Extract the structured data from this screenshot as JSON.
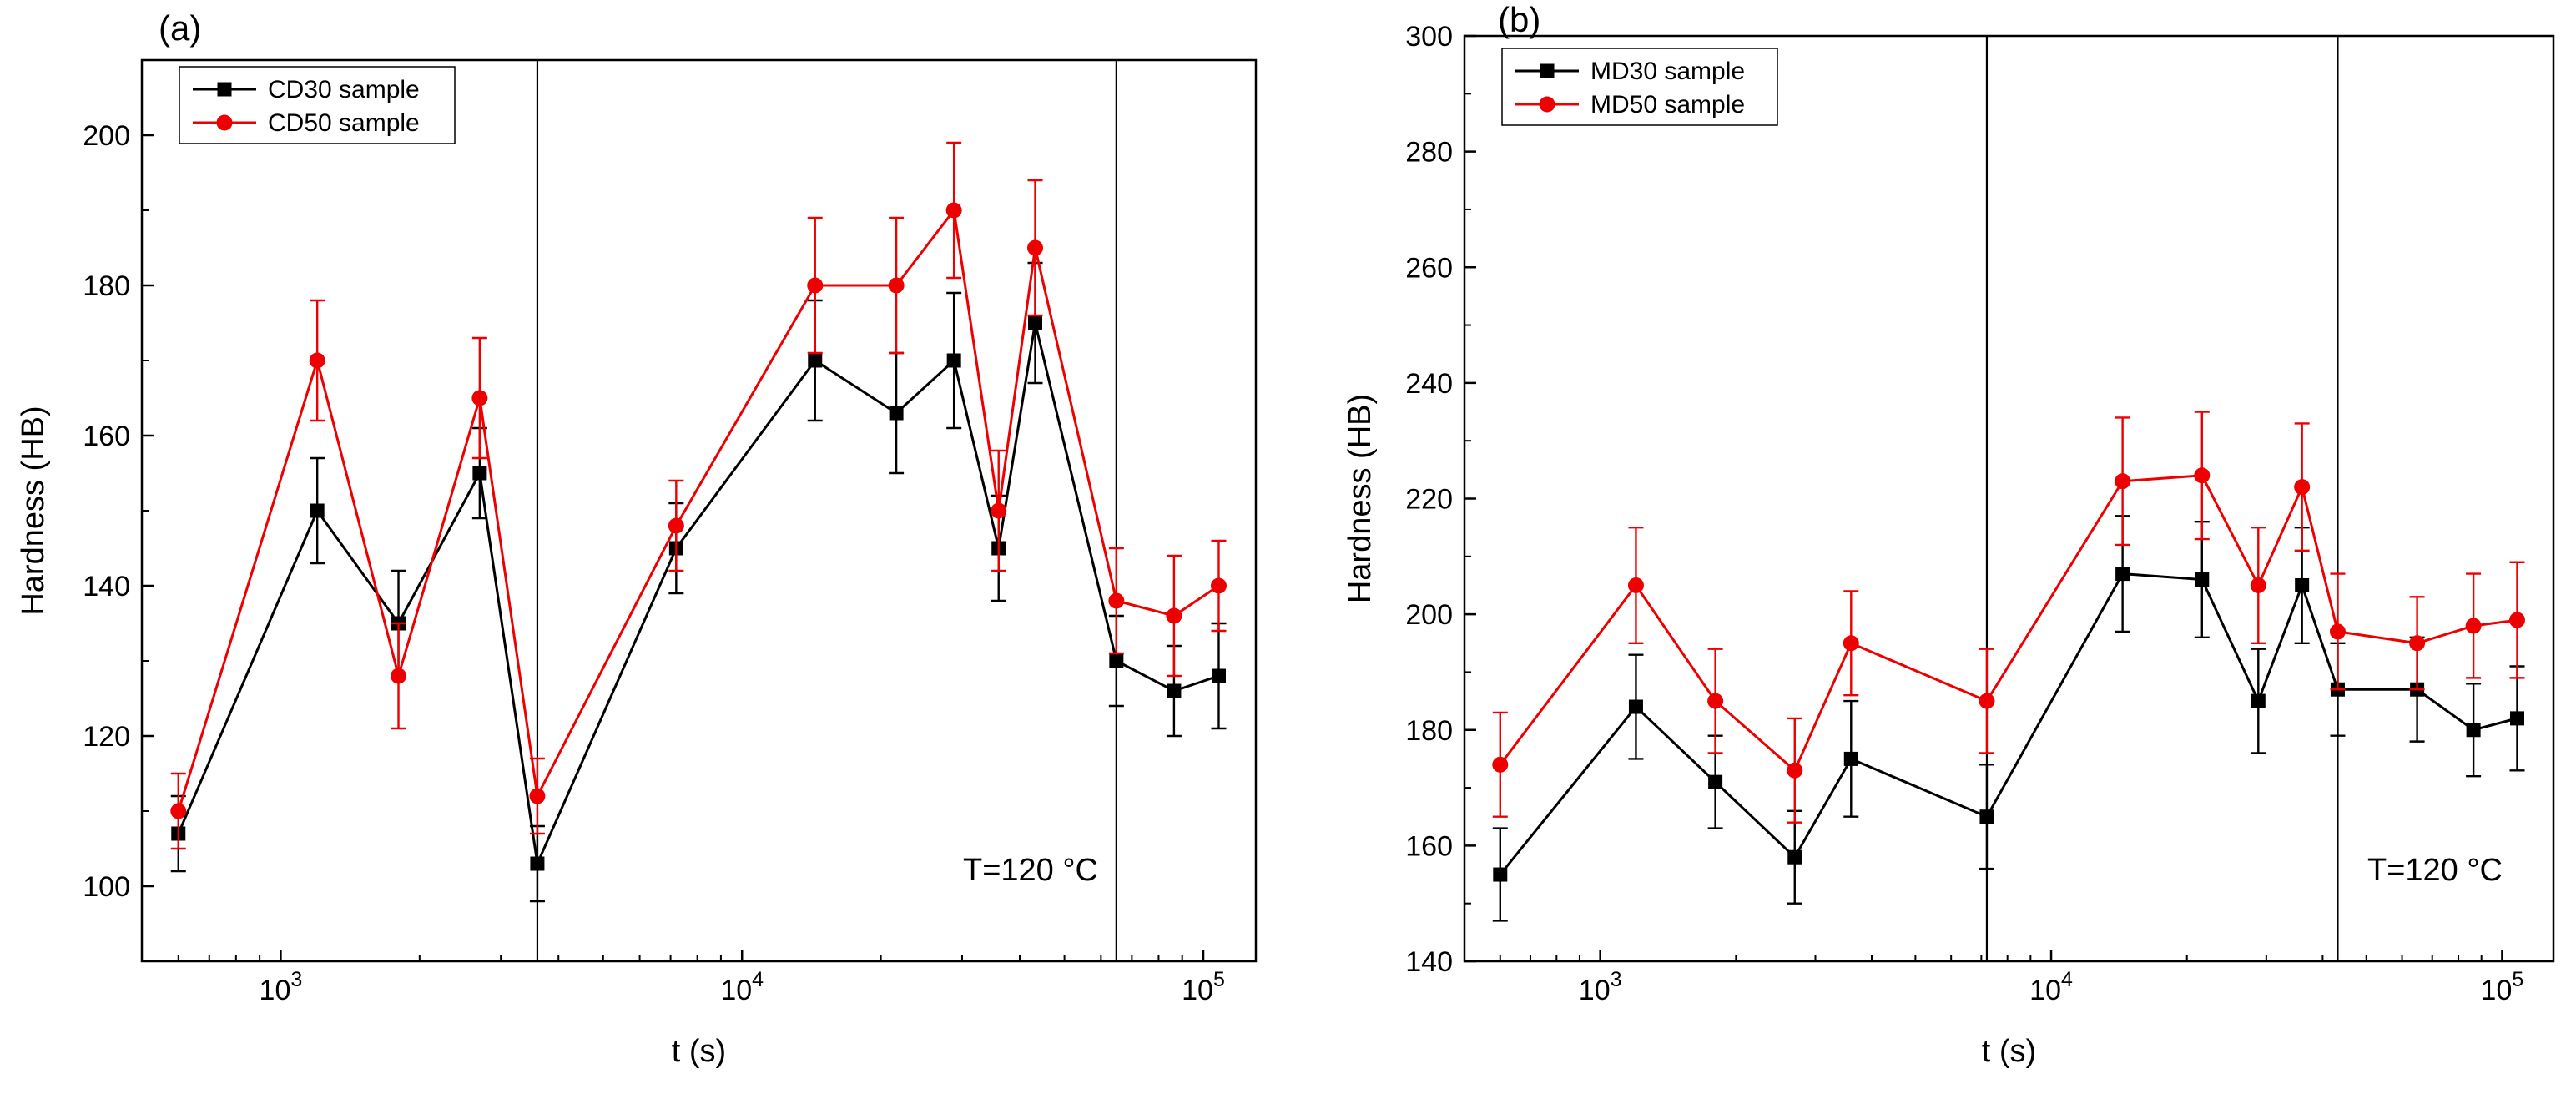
{
  "figure": {
    "background": "#ffffff",
    "axis_color": "#000000"
  },
  "chart_data": [
    {
      "type": "line",
      "panel_label": "(a)",
      "xlabel": "t (s)",
      "ylabel": "Hardness (HB)",
      "annotation": "T=120 °C",
      "x_scale": "log",
      "xlim": [
        500,
        130000
      ],
      "ylim": [
        90,
        210
      ],
      "ytick_major": [
        100,
        120,
        140,
        160,
        180,
        200
      ],
      "ytick_minor_step": 10,
      "xtick_decades": [
        3,
        4,
        5
      ],
      "vlines": [
        3600,
        64800
      ],
      "legend_position": "top-left",
      "x": [
        600,
        1200,
        1800,
        2700,
        3600,
        7200,
        14400,
        21600,
        28800,
        36000,
        43200,
        64800,
        86400,
        108000
      ],
      "series": [
        {
          "name": "CD30 sample",
          "color": "#000000",
          "marker": "square",
          "values": [
            107,
            150,
            135,
            155,
            103,
            145,
            170,
            163,
            170,
            145,
            175,
            130,
            126,
            128
          ],
          "errors": [
            5,
            7,
            7,
            6,
            5,
            6,
            8,
            8,
            9,
            7,
            8,
            6,
            6,
            7
          ]
        },
        {
          "name": "CD50 sample",
          "color": "#ee0000",
          "marker": "circle",
          "values": [
            110,
            170,
            128,
            165,
            112,
            148,
            180,
            180,
            190,
            150,
            185,
            138,
            136,
            140
          ],
          "errors": [
            5,
            8,
            7,
            8,
            5,
            6,
            9,
            9,
            9,
            8,
            9,
            7,
            8,
            6
          ]
        }
      ]
    },
    {
      "type": "line",
      "panel_label": "(b)",
      "xlabel": "t (s)",
      "ylabel": "Hardness (HB)",
      "annotation": "T=120 °C",
      "x_scale": "log",
      "xlim": [
        500,
        130000
      ],
      "ylim": [
        140,
        300
      ],
      "ytick_major": [
        140,
        160,
        180,
        200,
        220,
        240,
        260,
        280,
        300
      ],
      "ytick_minor_step": 10,
      "xtick_decades": [
        3,
        4,
        5
      ],
      "vlines": [
        7200,
        43200
      ],
      "legend_position": "top-left",
      "x": [
        600,
        1200,
        1800,
        2700,
        3600,
        7200,
        14400,
        21600,
        28800,
        36000,
        43200,
        64800,
        86400,
        108000
      ],
      "series": [
        {
          "name": "MD30 sample",
          "color": "#000000",
          "marker": "square",
          "values": [
            155,
            184,
            171,
            158,
            175,
            165,
            207,
            206,
            185,
            205,
            187,
            187,
            180,
            182
          ],
          "errors": [
            8,
            9,
            8,
            8,
            10,
            9,
            10,
            10,
            9,
            10,
            8,
            9,
            8,
            9
          ]
        },
        {
          "name": "MD50 sample",
          "color": "#ee0000",
          "marker": "circle",
          "values": [
            174,
            205,
            185,
            173,
            195,
            185,
            223,
            224,
            205,
            222,
            197,
            195,
            198,
            199
          ],
          "errors": [
            9,
            10,
            9,
            9,
            9,
            9,
            11,
            11,
            10,
            11,
            10,
            8,
            9,
            10
          ]
        }
      ]
    }
  ]
}
